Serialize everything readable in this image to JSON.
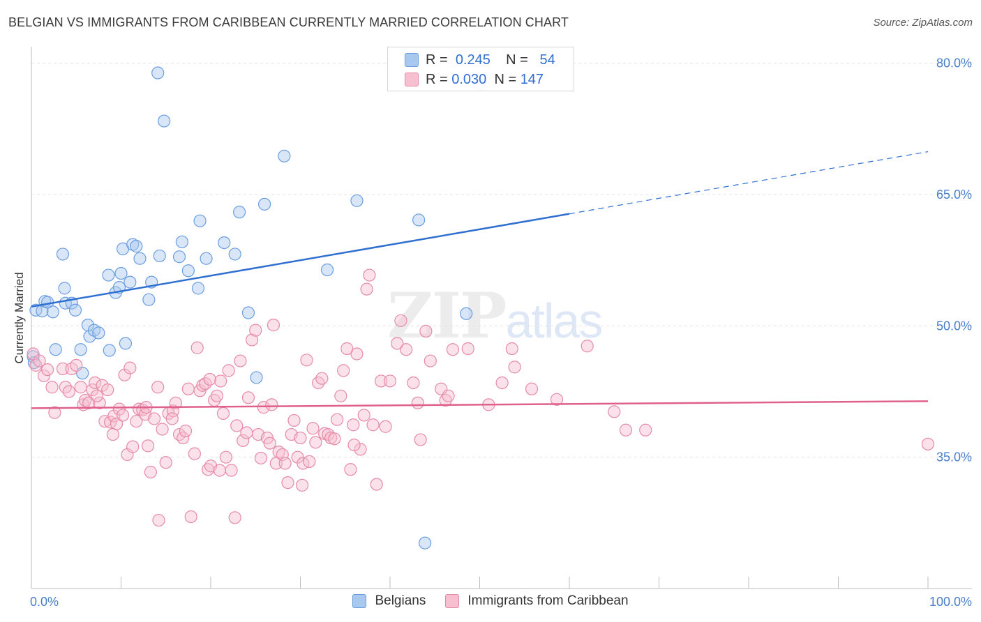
{
  "title": "BELGIAN VS IMMIGRANTS FROM CARIBBEAN CURRENTLY MARRIED CORRELATION CHART",
  "source": "Source: ZipAtlas.com",
  "watermark": {
    "zip": "ZIP",
    "atlas": "atlas"
  },
  "legend": {
    "rows": [
      {
        "r_label": "R =",
        "r_value": "0.245",
        "n_label": "N =",
        "n_value": "54",
        "color": "#a8c8f0",
        "border": "#6a9ee0"
      },
      {
        "r_label": "R =",
        "r_value": "0.030",
        "n_label": "N =",
        "n_value": "147",
        "color": "#f7bfd0",
        "border": "#e58aa8"
      }
    ]
  },
  "bottom_legend": [
    {
      "label": "Belgians",
      "color": "#a8c8f0",
      "border": "#6a9ee0"
    },
    {
      "label": "Immigrants from Caribbean",
      "color": "#f7bfd0",
      "border": "#e58aa8"
    }
  ],
  "chart_data": {
    "type": "scatter",
    "ylabel": "Currently Married",
    "xlabel": "",
    "xlim": [
      0,
      100
    ],
    "ylim": [
      20,
      82
    ],
    "x_tick_labels": [
      {
        "value": 0,
        "label": "0.0%"
      },
      {
        "value": 100,
        "label": "100.0%"
      }
    ],
    "x_minor_ticks": [
      0,
      10,
      20,
      30,
      40,
      50,
      60,
      70,
      80,
      90,
      100
    ],
    "y_ticks": [
      {
        "value": 35,
        "label": "35.0%"
      },
      {
        "value": 50,
        "label": "50.0%"
      },
      {
        "value": 65,
        "label": "65.0%"
      },
      {
        "value": 80,
        "label": "80.0%"
      }
    ],
    "grid": true,
    "series": [
      {
        "name": "Belgians",
        "color": "#6a9ee0",
        "fill": "rgba(168,200,240,0.45)",
        "trend": {
          "x0": 0,
          "y0": 52.2,
          "x1": 60,
          "y1": 62.8,
          "dash_to_x": 100,
          "dash_to_y": 69.9,
          "color": "#2f6fd0"
        },
        "points": [
          [
            0.2,
            46.5
          ],
          [
            0.3,
            45.8
          ],
          [
            0.5,
            51.8
          ],
          [
            1.2,
            51.7
          ],
          [
            1.5,
            52.8
          ],
          [
            1.8,
            52.7
          ],
          [
            2.4,
            51.6
          ],
          [
            2.7,
            47.3
          ],
          [
            3.5,
            58.2
          ],
          [
            3.7,
            54.3
          ],
          [
            3.8,
            52.6
          ],
          [
            4.5,
            52.6
          ],
          [
            4.9,
            51.8
          ],
          [
            5.5,
            47.3
          ],
          [
            5.7,
            44.6
          ],
          [
            6.3,
            50.1
          ],
          [
            6.5,
            48.8
          ],
          [
            7.0,
            49.5
          ],
          [
            7.5,
            49.2
          ],
          [
            10.0,
            56.0
          ],
          [
            8.6,
            55.8
          ],
          [
            8.7,
            47.2
          ],
          [
            9.4,
            53.8
          ],
          [
            9.8,
            54.4
          ],
          [
            10.2,
            58.8
          ],
          [
            10.5,
            48.0
          ],
          [
            11.0,
            55.0
          ],
          [
            11.3,
            59.3
          ],
          [
            11.7,
            59.1
          ],
          [
            12.1,
            57.7
          ],
          [
            13.1,
            53.0
          ],
          [
            13.4,
            55.0
          ],
          [
            14.1,
            78.9
          ],
          [
            14.3,
            58.0
          ],
          [
            14.8,
            73.4
          ],
          [
            16.5,
            57.9
          ],
          [
            16.8,
            59.6
          ],
          [
            17.5,
            56.3
          ],
          [
            18.6,
            54.3
          ],
          [
            18.8,
            62.0
          ],
          [
            19.5,
            57.7
          ],
          [
            21.5,
            59.5
          ],
          [
            22.7,
            58.2
          ],
          [
            23.2,
            63.0
          ],
          [
            24.2,
            51.5
          ],
          [
            25.1,
            44.1
          ],
          [
            26.0,
            63.9
          ],
          [
            28.2,
            69.4
          ],
          [
            33.0,
            56.4
          ],
          [
            36.3,
            64.3
          ],
          [
            43.2,
            62.1
          ],
          [
            48.5,
            51.4
          ],
          [
            50.0,
            77.6
          ],
          [
            43.9,
            25.2
          ]
        ]
      },
      {
        "name": "Immigrants from Caribbean",
        "color": "#e58aa8",
        "fill": "rgba(247,191,208,0.45)",
        "trend": {
          "x0": 0,
          "y0": 40.6,
          "x1": 100,
          "y1": 41.4,
          "color": "#e0608c"
        },
        "points": [
          [
            0.2,
            46.8
          ],
          [
            0.5,
            45.5
          ],
          [
            0.9,
            46.0
          ],
          [
            1.4,
            44.3
          ],
          [
            1.8,
            45.0
          ],
          [
            2.3,
            43.0
          ],
          [
            2.6,
            40.1
          ],
          [
            3.5,
            45.1
          ],
          [
            3.8,
            43.0
          ],
          [
            4.2,
            42.5
          ],
          [
            4.5,
            45.1
          ],
          [
            5.0,
            45.5
          ],
          [
            5.5,
            43.0
          ],
          [
            5.8,
            41.0
          ],
          [
            6.0,
            41.5
          ],
          [
            6.4,
            41.2
          ],
          [
            6.8,
            42.7
          ],
          [
            7.1,
            43.5
          ],
          [
            7.6,
            41.2
          ],
          [
            7.9,
            43.2
          ],
          [
            8.2,
            39.1
          ],
          [
            8.5,
            42.7
          ],
          [
            8.8,
            39.0
          ],
          [
            9.2,
            39.7
          ],
          [
            9.5,
            38.8
          ],
          [
            9.8,
            40.5
          ],
          [
            10.2,
            39.8
          ],
          [
            10.4,
            44.4
          ],
          [
            10.7,
            35.3
          ],
          [
            11.0,
            45.2
          ],
          [
            11.3,
            36.2
          ],
          [
            11.7,
            39.1
          ],
          [
            12.0,
            40.5
          ],
          [
            12.4,
            40.4
          ],
          [
            12.7,
            39.9
          ],
          [
            13.0,
            36.3
          ],
          [
            13.3,
            33.3
          ],
          [
            13.7,
            39.4
          ],
          [
            14.1,
            43.0
          ],
          [
            14.2,
            27.8
          ],
          [
            14.6,
            38.2
          ],
          [
            15.0,
            34.4
          ],
          [
            15.3,
            40.0
          ],
          [
            15.8,
            40.3
          ],
          [
            16.1,
            41.2
          ],
          [
            16.5,
            37.6
          ],
          [
            16.9,
            37.2
          ],
          [
            17.2,
            38.0
          ],
          [
            17.5,
            42.8
          ],
          [
            17.8,
            28.2
          ],
          [
            18.2,
            35.4
          ],
          [
            18.5,
            47.5
          ],
          [
            18.8,
            42.6
          ],
          [
            19.1,
            43.2
          ],
          [
            19.4,
            43.4
          ],
          [
            19.7,
            33.6
          ],
          [
            20.0,
            34.0
          ],
          [
            20.4,
            41.5
          ],
          [
            20.7,
            42.0
          ],
          [
            21.1,
            43.7
          ],
          [
            21.4,
            40.0
          ],
          [
            21.7,
            35.0
          ],
          [
            22.0,
            44.9
          ],
          [
            22.3,
            33.5
          ],
          [
            22.7,
            28.1
          ],
          [
            22.9,
            38.6
          ],
          [
            23.3,
            46.0
          ],
          [
            23.6,
            36.9
          ],
          [
            24.0,
            37.8
          ],
          [
            24.2,
            41.8
          ],
          [
            24.6,
            48.4
          ],
          [
            25.0,
            49.5
          ],
          [
            25.3,
            37.6
          ],
          [
            25.6,
            34.9
          ],
          [
            25.9,
            40.7
          ],
          [
            26.3,
            37.2
          ],
          [
            26.6,
            36.6
          ],
          [
            27.0,
            50.1
          ],
          [
            27.3,
            34.3
          ],
          [
            27.6,
            35.6
          ],
          [
            28.0,
            35.3
          ],
          [
            28.3,
            34.3
          ],
          [
            28.6,
            32.1
          ],
          [
            29.0,
            37.6
          ],
          [
            29.3,
            39.2
          ],
          [
            29.7,
            35.0
          ],
          [
            30.0,
            37.2
          ],
          [
            30.3,
            34.3
          ],
          [
            30.7,
            46.1
          ],
          [
            31.0,
            34.5
          ],
          [
            31.4,
            38.3
          ],
          [
            31.7,
            36.7
          ],
          [
            32.0,
            43.5
          ],
          [
            32.4,
            44.0
          ],
          [
            32.7,
            37.7
          ],
          [
            33.1,
            37.6
          ],
          [
            33.4,
            37.2
          ],
          [
            33.8,
            37.1
          ],
          [
            34.1,
            39.3
          ],
          [
            34.5,
            42.0
          ],
          [
            34.8,
            44.9
          ],
          [
            35.2,
            47.4
          ],
          [
            35.6,
            33.6
          ],
          [
            35.9,
            38.7
          ],
          [
            36.3,
            46.8
          ],
          [
            36.7,
            35.9
          ],
          [
            37.1,
            39.8
          ],
          [
            37.4,
            54.2
          ],
          [
            37.7,
            55.8
          ],
          [
            38.1,
            38.7
          ],
          [
            38.5,
            31.9
          ],
          [
            39.0,
            43.7
          ],
          [
            39.5,
            38.5
          ],
          [
            40.0,
            43.7
          ],
          [
            41.2,
            50.6
          ],
          [
            41.8,
            47.3
          ],
          [
            42.6,
            43.5
          ],
          [
            43.1,
            41.2
          ],
          [
            43.4,
            37.0
          ],
          [
            44.0,
            49.4
          ],
          [
            44.5,
            46.0
          ],
          [
            45.7,
            42.8
          ],
          [
            46.2,
            41.5
          ],
          [
            46.5,
            42.0
          ],
          [
            47.0,
            47.3
          ],
          [
            48.7,
            47.4
          ],
          [
            51.0,
            41.0
          ],
          [
            52.5,
            43.5
          ],
          [
            53.6,
            47.4
          ],
          [
            53.9,
            45.3
          ],
          [
            55.8,
            42.8
          ],
          [
            58.6,
            41.6
          ],
          [
            62.0,
            47.7
          ],
          [
            65.0,
            40.2
          ],
          [
            66.3,
            38.1
          ],
          [
            68.5,
            38.1
          ],
          [
            100.0,
            36.5
          ],
          [
            40.8,
            48.0
          ],
          [
            30.2,
            31.8
          ],
          [
            15.7,
            39.4
          ],
          [
            9.1,
            37.6
          ],
          [
            12.8,
            40.7
          ],
          [
            7.3,
            42.0
          ],
          [
            21.0,
            33.5
          ],
          [
            26.8,
            41.0
          ],
          [
            19.9,
            43.9
          ],
          [
            36.0,
            36.4
          ]
        ]
      }
    ]
  }
}
